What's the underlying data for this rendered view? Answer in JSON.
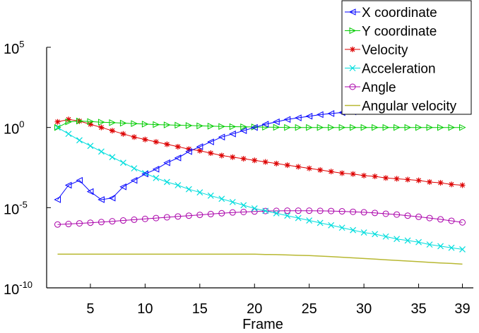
{
  "chart_data": {
    "type": "line",
    "title": "",
    "xlabel": "Frame",
    "ylabel": "",
    "y_scale": "log",
    "x_range": [
      1,
      40
    ],
    "y_range_log10": [
      -10,
      5
    ],
    "x_ticks": [
      5,
      10,
      15,
      20,
      25,
      30,
      35,
      39
    ],
    "y_ticks": [
      {
        "exp": 5,
        "base": "10",
        "sup": "5"
      },
      {
        "exp": 0,
        "base": "10",
        "sup": "0"
      },
      {
        "exp": -5,
        "base": "10",
        "sup": "-5"
      },
      {
        "exp": -10,
        "base": "10",
        "sup": "-10"
      }
    ],
    "grid": false,
    "legend_position": "top-right",
    "x": [
      2,
      3,
      4,
      5,
      6,
      7,
      8,
      9,
      10,
      11,
      12,
      13,
      14,
      15,
      16,
      17,
      18,
      19,
      20,
      21,
      22,
      23,
      24,
      25,
      26,
      27,
      28,
      29,
      30,
      31,
      32,
      33,
      34,
      35,
      36,
      37,
      38,
      39
    ],
    "series": [
      {
        "name": "X coordinate",
        "color": "#0000ff",
        "marker": "triangle-left",
        "log10_values": [
          -4.5,
          -3.6,
          -3.3,
          -4.0,
          -4.5,
          -4.4,
          -3.7,
          -3.3,
          -2.9,
          -2.6,
          -2.2,
          -1.9,
          -1.5,
          -1.2,
          -0.9,
          -0.6,
          -0.4,
          -0.2,
          0.0,
          0.2,
          0.35,
          0.5,
          0.6,
          0.7,
          0.8,
          0.87,
          0.93,
          0.97,
          1.0,
          1.02,
          1.03,
          1.04,
          1.05,
          1.05,
          1.05,
          1.05,
          1.05,
          1.05
        ]
      },
      {
        "name": "Y coordinate",
        "color": "#00cc00",
        "marker": "triangle-right",
        "log10_values": [
          0.0,
          0.35,
          0.4,
          0.37,
          0.33,
          0.3,
          0.27,
          0.24,
          0.21,
          0.18,
          0.16,
          0.14,
          0.12,
          0.1,
          0.08,
          0.06,
          0.05,
          0.04,
          0.03,
          0.02,
          0.01,
          0.0,
          0.0,
          0.0,
          0.0,
          0.0,
          0.0,
          0.0,
          0.0,
          0.0,
          0.0,
          0.0,
          0.0,
          0.0,
          0.0,
          0.0,
          0.0,
          0.0
        ]
      },
      {
        "name": "Velocity",
        "color": "#dd0000",
        "marker": "asterisk",
        "log10_values": [
          0.35,
          0.5,
          0.4,
          0.2,
          0.0,
          -0.2,
          -0.4,
          -0.6,
          -0.75,
          -0.9,
          -1.05,
          -1.2,
          -1.35,
          -1.45,
          -1.6,
          -1.75,
          -1.85,
          -1.95,
          -2.05,
          -2.15,
          -2.25,
          -2.35,
          -2.45,
          -2.55,
          -2.65,
          -2.75,
          -2.85,
          -2.9,
          -3.0,
          -3.05,
          -3.15,
          -3.2,
          -3.25,
          -3.3,
          -3.4,
          -3.45,
          -3.55,
          -3.6
        ]
      },
      {
        "name": "Acceleration",
        "color": "#00dddd",
        "marker": "x",
        "log10_values": [
          0.0,
          -0.4,
          -0.8,
          -1.15,
          -1.5,
          -1.85,
          -2.2,
          -2.55,
          -2.85,
          -3.15,
          -3.4,
          -3.6,
          -3.85,
          -4.05,
          -4.25,
          -4.45,
          -4.65,
          -4.85,
          -5.05,
          -5.2,
          -5.35,
          -5.5,
          -5.65,
          -5.8,
          -5.95,
          -6.1,
          -6.25,
          -6.4,
          -6.55,
          -6.65,
          -6.8,
          -6.95,
          -7.05,
          -7.15,
          -7.3,
          -7.4,
          -7.5,
          -7.6
        ]
      },
      {
        "name": "Angle",
        "color": "#aa00aa",
        "marker": "circle",
        "log10_values": [
          -6.05,
          -6.02,
          -5.98,
          -5.94,
          -5.9,
          -5.85,
          -5.8,
          -5.75,
          -5.7,
          -5.65,
          -5.6,
          -5.55,
          -5.5,
          -5.45,
          -5.4,
          -5.35,
          -5.3,
          -5.27,
          -5.24,
          -5.21,
          -5.2,
          -5.19,
          -5.19,
          -5.19,
          -5.2,
          -5.21,
          -5.23,
          -5.26,
          -5.29,
          -5.33,
          -5.38,
          -5.43,
          -5.5,
          -5.57,
          -5.65,
          -5.73,
          -5.82,
          -5.92
        ]
      },
      {
        "name": "Angular velocity",
        "color": "#b8b832",
        "marker": "none",
        "log10_values": [
          -7.9,
          -7.9,
          -7.9,
          -7.9,
          -7.9,
          -7.9,
          -7.9,
          -7.9,
          -7.9,
          -7.9,
          -7.9,
          -7.9,
          -7.9,
          -7.9,
          -7.9,
          -7.9,
          -7.9,
          -7.9,
          -7.9,
          -7.92,
          -7.93,
          -7.95,
          -7.97,
          -7.99,
          -8.02,
          -8.05,
          -8.09,
          -8.13,
          -8.17,
          -8.21,
          -8.25,
          -8.29,
          -8.33,
          -8.37,
          -8.41,
          -8.45,
          -8.48,
          -8.52
        ]
      }
    ]
  }
}
